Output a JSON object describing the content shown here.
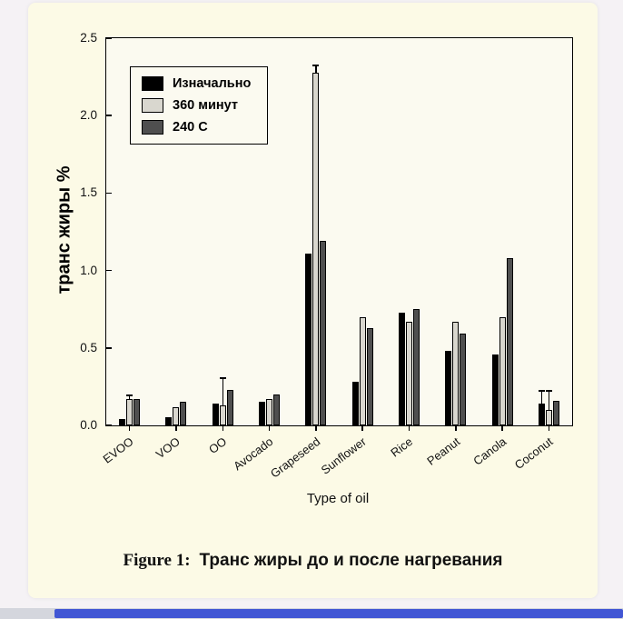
{
  "page": {
    "bg_color": "#f5f2f5",
    "card_color": "#fcfae6",
    "bottom_bar_color": "#4156d4"
  },
  "caption": {
    "prefix": "Figure 1:",
    "text": "Транс жиры до и после нагревания"
  },
  "chart_data": {
    "type": "bar",
    "title": "",
    "xlabel": "Type of oil",
    "ylabel": "транс жиры %",
    "ylim": [
      0,
      2.5
    ],
    "ytick_labels": [
      "0.0",
      "0.5",
      "1.0",
      "1.5",
      "2.0",
      "2.5"
    ],
    "grid": false,
    "legend_position": "top-left",
    "categories": [
      "EVOO",
      "VOO",
      "OO",
      "Avocado",
      "Grapeseed",
      "Sunflower",
      "Rice",
      "Peanut",
      "Canola",
      "Coconut"
    ],
    "series": [
      {
        "name": "Изначально",
        "color": "#000000",
        "values": [
          0.04,
          0.05,
          0.14,
          0.15,
          1.11,
          0.28,
          0.73,
          0.48,
          0.46,
          0.14
        ],
        "errors": [
          0,
          0,
          0,
          0,
          0,
          0,
          0,
          0,
          0,
          0.08
        ]
      },
      {
        "name": "360 минут",
        "color": "#d9d7cf",
        "values": [
          0.17,
          0.12,
          0.13,
          0.17,
          2.28,
          0.7,
          0.67,
          0.67,
          0.7,
          0.1
        ],
        "errors": [
          0.02,
          0,
          0.17,
          0,
          0.04,
          0,
          0,
          0,
          0,
          0.12
        ]
      },
      {
        "name": "240 C",
        "color": "#4f4f4f",
        "values": [
          0.17,
          0.15,
          0.23,
          0.2,
          1.19,
          0.63,
          0.75,
          0.59,
          1.08,
          0.16
        ],
        "errors": [
          0,
          0,
          0,
          0,
          0,
          0,
          0,
          0,
          0,
          0
        ]
      }
    ]
  }
}
